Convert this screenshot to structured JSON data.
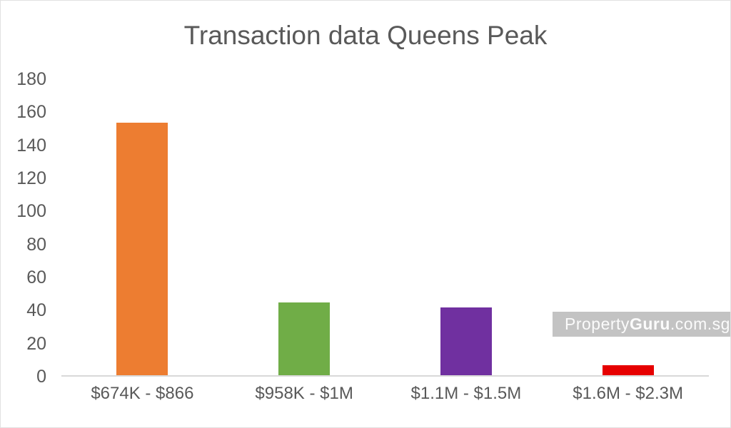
{
  "title": "Transaction data Queens Peak",
  "watermark": {
    "part1": "Property",
    "part2": "Guru",
    "part3": ".com.sg"
  },
  "chart_data": {
    "type": "bar",
    "title": "Transaction data Queens Peak",
    "categories": [
      "$674K - $866",
      "$958K - $1M",
      "$1.1M - $1.5M",
      "$1.6M - $2.3M"
    ],
    "values": [
      153,
      44,
      41,
      6
    ],
    "bar_colors": [
      "#ED7D31",
      "#70AD47",
      "#7030A0",
      "#E60000"
    ],
    "xlabel": "",
    "ylabel": "",
    "ylim": [
      0,
      180
    ],
    "yticks": [
      0,
      20,
      40,
      60,
      80,
      100,
      120,
      140,
      160,
      180
    ],
    "grid": false,
    "legend": false,
    "title_color": "#595959",
    "tick_label_color": "#595959",
    "axis_line_color": "#d9d9d9",
    "background_color": "#ffffff"
  }
}
